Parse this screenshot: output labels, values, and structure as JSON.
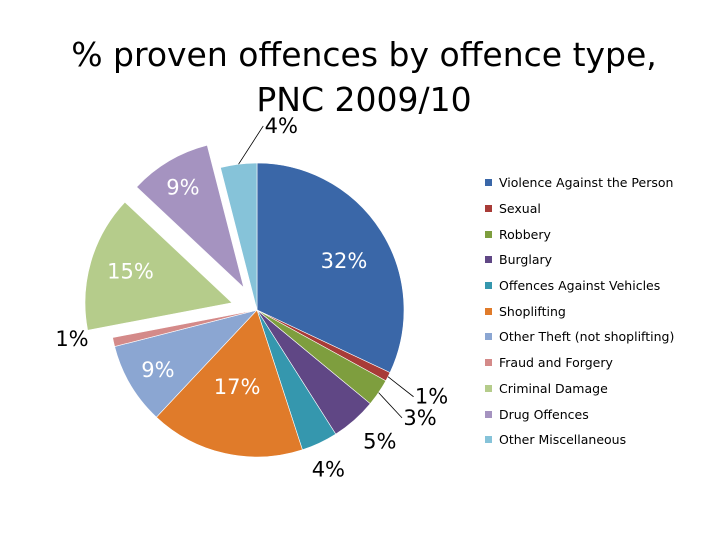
{
  "chart_data": {
    "type": "pie",
    "title": [
      "% proven offences by offence type,",
      "PNC 2009/10"
    ],
    "categories": [
      "Violence Against the Person",
      "Sexual",
      "Robbery",
      "Burglary",
      "Offences Against Vehicles",
      "Shoplifting",
      "Other Theft (not shoplifting)",
      "Fraud and Forgery",
      "Criminal Damage",
      "Drug Offences",
      "Other Miscellaneous"
    ],
    "values": [
      32,
      1,
      3,
      5,
      4,
      17,
      9,
      1,
      15,
      9,
      4
    ],
    "data_labels": [
      "32%",
      "1%",
      "3%",
      "5%",
      "4%",
      "17%",
      "9%",
      "1%",
      "15%",
      "9%",
      "4%"
    ],
    "colors": [
      "#3A67A8",
      "#A83B37",
      "#7E9E3E",
      "#604785",
      "#3597AE",
      "#E07B2A",
      "#8BA6D2",
      "#D48A89",
      "#B5CC8B",
      "#A593C0",
      "#86C3D9"
    ],
    "exploded": [
      false,
      false,
      false,
      false,
      false,
      false,
      false,
      false,
      true,
      true,
      false
    ],
    "legend_position": "right"
  }
}
